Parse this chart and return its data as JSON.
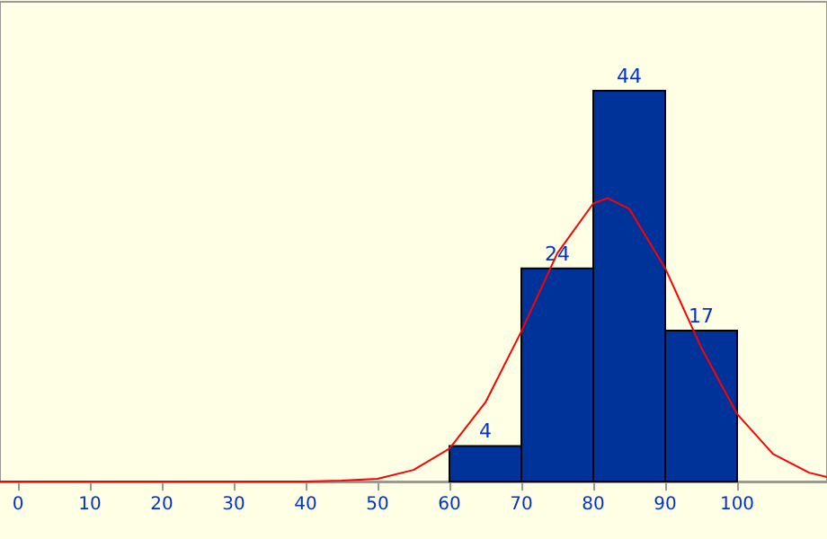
{
  "chart_data": {
    "type": "histogram",
    "series": [
      {
        "color": "#003399",
        "bins": [
          60,
          70,
          80,
          90,
          100
        ],
        "values": [
          4,
          24,
          44,
          17
        ],
        "value_labels": [
          "4",
          "24",
          "44",
          "17"
        ]
      },
      {
        "type": "line",
        "color": "#ff0000",
        "x": [
          -2.5,
          0,
          10,
          20,
          30,
          35,
          40,
          45,
          50,
          55,
          60,
          65,
          70,
          75,
          80,
          82,
          85,
          90,
          95,
          100,
          105,
          110,
          112.5
        ],
        "values": [
          0,
          0,
          0,
          0,
          0,
          0,
          0.0,
          0.1,
          0.3,
          1.3,
          3.7,
          8.9,
          16.9,
          25.7,
          31.3,
          31.9,
          30.7,
          24.0,
          15.1,
          7.6,
          3.1,
          1.0,
          0.5
        ]
      }
    ],
    "xlim": [
      -2.5,
      112.5
    ],
    "xticks": [
      0,
      10,
      20,
      30,
      40,
      50,
      60,
      70,
      80,
      90,
      100
    ],
    "ylim": [
      0,
      54
    ],
    "tick_labels": "x",
    "grid": false,
    "marker": "none",
    "line_style": "solid"
  }
}
